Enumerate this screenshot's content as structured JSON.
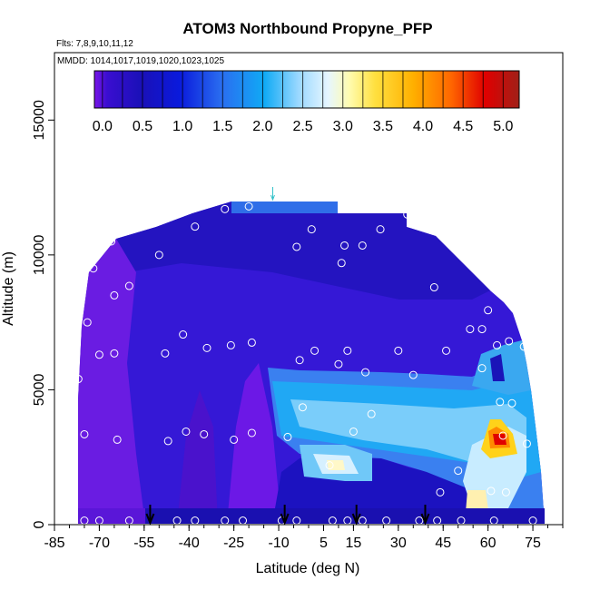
{
  "chart_data": {
    "type": "heatmap",
    "title": "ATOM3 Northbound Propyne_PFP",
    "subtitle_flights": "Flts: 7,8,9,10,11,12",
    "subtitle_dates": "MMDD: 1014,1017,1019,1020,1023,1025",
    "xlabel": "Latitude (deg N)",
    "ylabel": "Altitude (m)",
    "xlim": [
      -85,
      85
    ],
    "ylim": [
      0,
      17500
    ],
    "xticks": [
      "-85",
      "-70",
      "-55",
      "-40",
      "-25",
      "-10",
      "5",
      "15",
      "30",
      "45",
      "60",
      "75"
    ],
    "xtick_values": [
      -85,
      -70,
      -55,
      -40,
      -25,
      -10,
      5,
      15,
      30,
      45,
      60,
      75
    ],
    "yticks": [
      "0",
      "5000",
      "10000",
      "15000"
    ],
    "ytick_values": [
      0,
      5000,
      10000,
      15000
    ],
    "colorbar": {
      "ticks": [
        "0.0",
        "0.5",
        "1.0",
        "1.5",
        "2.0",
        "2.5",
        "3.0",
        "3.5",
        "4.0",
        "4.5",
        "5.0"
      ],
      "tick_values": [
        0,
        0.5,
        1.0,
        1.5,
        2.0,
        2.5,
        3.0,
        3.5,
        4.0,
        4.5,
        5.0
      ],
      "range": [
        -0.1,
        5.2
      ],
      "colors": [
        "#7a16e8",
        "#1a10b8",
        "#0a1adc",
        "#2a6ef0",
        "#10aaf5",
        "#c8ecff",
        "#fffcb0",
        "#ffd21a",
        "#ff9a00",
        "#ff4800",
        "#e00000",
        "#a02018"
      ]
    },
    "observation_points": [
      {
        "lat": -77,
        "alt": 5400
      },
      {
        "lat": -75,
        "alt": 3350
      },
      {
        "lat": -74,
        "alt": 7500
      },
      {
        "lat": -72,
        "alt": 9500
      },
      {
        "lat": -70,
        "alt": 6300
      },
      {
        "lat": -66,
        "alt": 10500
      },
      {
        "lat": -65,
        "alt": 8500
      },
      {
        "lat": -65,
        "alt": 6350
      },
      {
        "lat": -64,
        "alt": 3150
      },
      {
        "lat": -60,
        "alt": 8850
      },
      {
        "lat": -50,
        "alt": 10000
      },
      {
        "lat": -48,
        "alt": 6350
      },
      {
        "lat": -47,
        "alt": 3100
      },
      {
        "lat": -42,
        "alt": 7050
      },
      {
        "lat": -41,
        "alt": 3450
      },
      {
        "lat": -38,
        "alt": 11050
      },
      {
        "lat": -35,
        "alt": 3350
      },
      {
        "lat": -34,
        "alt": 6550
      },
      {
        "lat": -28,
        "alt": 11700
      },
      {
        "lat": -26,
        "alt": 6650
      },
      {
        "lat": -25,
        "alt": 3150
      },
      {
        "lat": -20,
        "alt": 11800
      },
      {
        "lat": -19,
        "alt": 6750
      },
      {
        "lat": -19,
        "alt": 3400
      },
      {
        "lat": -12,
        "alt": 12550
      },
      {
        "lat": -7,
        "alt": 3250
      },
      {
        "lat": -4,
        "alt": 10300
      },
      {
        "lat": -3,
        "alt": 6100
      },
      {
        "lat": -2,
        "alt": 4350
      },
      {
        "lat": 1,
        "alt": 10950
      },
      {
        "lat": 2,
        "alt": 6450
      },
      {
        "lat": 7,
        "alt": 2200
      },
      {
        "lat": 10,
        "alt": 5950
      },
      {
        "lat": 11,
        "alt": 9700
      },
      {
        "lat": 12,
        "alt": 10350
      },
      {
        "lat": 13,
        "alt": 6450
      },
      {
        "lat": 15,
        "alt": 3450
      },
      {
        "lat": 18,
        "alt": 10350
      },
      {
        "lat": 19,
        "alt": 5650
      },
      {
        "lat": 21,
        "alt": 4100
      },
      {
        "lat": 24,
        "alt": 10950
      },
      {
        "lat": 30,
        "alt": 6450
      },
      {
        "lat": 33,
        "alt": 11500
      },
      {
        "lat": 35,
        "alt": 5550
      },
      {
        "lat": 42,
        "alt": 8800
      },
      {
        "lat": 44,
        "alt": 1200
      },
      {
        "lat": 46,
        "alt": 6450
      },
      {
        "lat": 50,
        "alt": 2000
      },
      {
        "lat": 54,
        "alt": 7250
      },
      {
        "lat": 58,
        "alt": 5800
      },
      {
        "lat": 58,
        "alt": 7250
      },
      {
        "lat": 60,
        "alt": 7950
      },
      {
        "lat": 61,
        "alt": 1250
      },
      {
        "lat": 63,
        "alt": 6650
      },
      {
        "lat": 64,
        "alt": 4550
      },
      {
        "lat": 65,
        "alt": 3300
      },
      {
        "lat": 66,
        "alt": 1200
      },
      {
        "lat": 67,
        "alt": 6800
      },
      {
        "lat": 68,
        "alt": 4500
      },
      {
        "lat": 68,
        "alt": 8450
      },
      {
        "lat": 72,
        "alt": 6600
      },
      {
        "lat": 73,
        "alt": 3000
      },
      {
        "lat": -75,
        "alt": 150
      },
      {
        "lat": -70,
        "alt": 150
      },
      {
        "lat": -60,
        "alt": 150
      },
      {
        "lat": -44,
        "alt": 150
      },
      {
        "lat": -38,
        "alt": 150
      },
      {
        "lat": -28,
        "alt": 150
      },
      {
        "lat": -22,
        "alt": 150
      },
      {
        "lat": -9,
        "alt": 150
      },
      {
        "lat": -4,
        "alt": 150
      },
      {
        "lat": 8,
        "alt": 150
      },
      {
        "lat": 13,
        "alt": 150
      },
      {
        "lat": 18,
        "alt": 150
      },
      {
        "lat": 26,
        "alt": 150
      },
      {
        "lat": 37,
        "alt": 150
      },
      {
        "lat": 43,
        "alt": 150
      },
      {
        "lat": 51,
        "alt": 150
      },
      {
        "lat": 62,
        "alt": 150
      },
      {
        "lat": 75,
        "alt": 150
      }
    ],
    "arrows_lat": [
      -53,
      -8,
      16,
      39
    ],
    "top_marker_lat": -12
  }
}
